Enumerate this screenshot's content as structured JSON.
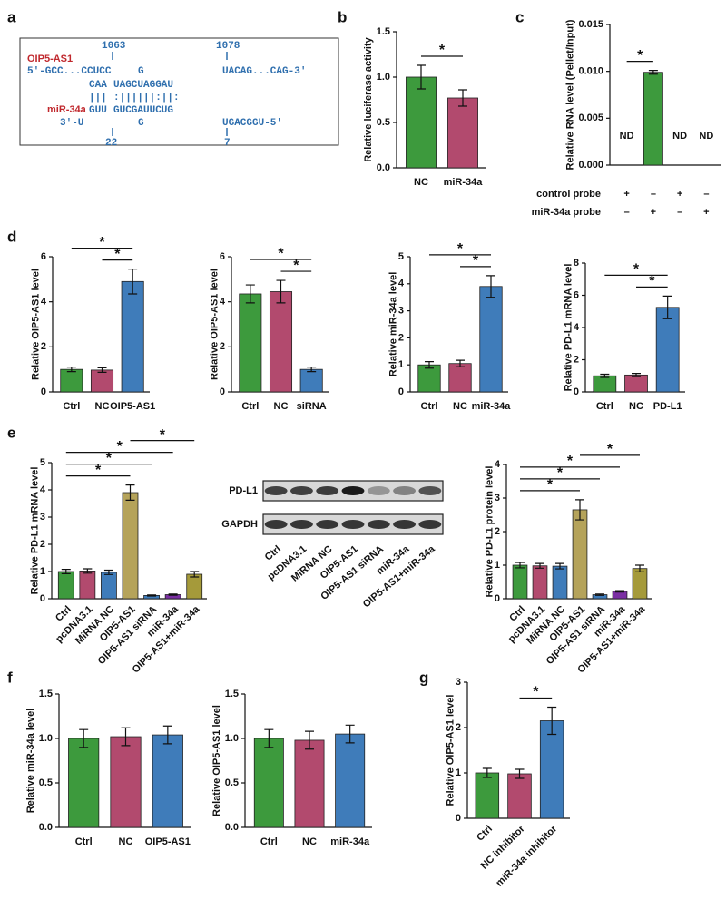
{
  "panel_labels": [
    "a",
    "b",
    "c",
    "d",
    "e",
    "f",
    "g"
  ],
  "panel_a": {
    "gene": "OIP5-AS1",
    "mirna": "miR-34a",
    "positions": [
      "1063",
      "1078",
      "22",
      "7"
    ],
    "segments": [
      "5'-GCC...CCUCC",
      "G",
      "UACAG...CAG-3'",
      "CAA",
      "UAGCUAGGAU",
      "|||",
      ":||||||:||:",
      "GUU",
      "GUCGAUUCUG",
      "3'-U",
      "G",
      "UGACGGU-5'"
    ]
  },
  "blot": {
    "rows": [
      "PD-L1",
      "GAPDH"
    ],
    "lanes": [
      "Ctrl",
      "pcDNA3.1",
      "MiRNA NC",
      "OIP5-AS1",
      "OIP5-AS1 siRNA",
      "miR-34a",
      "OIP5-AS1+miR-34a"
    ]
  },
  "chart_data": [
    {
      "type": "bar",
      "ylabel": "Relative luciferase activity",
      "categories": [
        "NC",
        "miR-34a"
      ],
      "values": [
        1.0,
        0.77
      ],
      "errors": [
        0.13,
        0.09
      ],
      "colors": [
        "#3d9a3d",
        "#b24a6e"
      ],
      "ylim": [
        0,
        1.5
      ],
      "yticks": [
        {
          "value": 0,
          "label": "0.0"
        },
        {
          "value": 0.5,
          "label": "0.5"
        },
        {
          "value": 1,
          "label": "1.0"
        },
        {
          "value": 1.5,
          "label": "1.5"
        }
      ],
      "significance": [
        {
          "from": 0,
          "to": 1,
          "label": "*"
        }
      ]
    },
    {
      "type": "bar",
      "ylabel": "Relative RNA level (Pellet/Input)",
      "categories": [
        null,
        null,
        null,
        null
      ],
      "values": [
        null,
        0.0099,
        null,
        null
      ],
      "value_labels": [
        "ND",
        null,
        "ND",
        "ND"
      ],
      "errors": [
        null,
        0.0002,
        null,
        null
      ],
      "colors": [
        "#3d9a3d",
        "#3d9a3d",
        "#3d9a3d",
        "#3d9a3d"
      ],
      "ylim": [
        0,
        0.015
      ],
      "yticks": [
        {
          "value": 0,
          "label": "0.000"
        },
        {
          "value": 0.005,
          "label": "0.005"
        },
        {
          "value": 0.01,
          "label": "0.010"
        },
        {
          "value": 0.015,
          "label": "0.015"
        }
      ],
      "significance": [
        {
          "from": 0,
          "to": 1,
          "label": "*"
        }
      ],
      "conditions": [
        {
          "name": "control probe",
          "values": [
            "+",
            "–",
            "+",
            "–"
          ]
        },
        {
          "name": "miR-34a probe",
          "values": [
            "–",
            "+",
            "–",
            "+"
          ]
        }
      ]
    },
    {
      "type": "bar",
      "ylabel": "Relative OIP5-AS1 level",
      "categories": [
        "Ctrl",
        "NC",
        "OIP5-AS1"
      ],
      "values": [
        1.0,
        0.97,
        4.9
      ],
      "errors": [
        0.1,
        0.1,
        0.55
      ],
      "colors": [
        "#3d9a3d",
        "#b24a6e",
        "#3f7cba"
      ],
      "ylim": [
        0,
        6
      ],
      "yticks": [
        0,
        2,
        4,
        6
      ],
      "significance": [
        {
          "from": 0,
          "to": 2,
          "label": "*"
        },
        {
          "from": 1,
          "to": 2,
          "label": "*"
        }
      ]
    },
    {
      "type": "bar",
      "ylabel": "Relative OIP5-AS1 level",
      "categories": [
        "Ctrl",
        "NC",
        "siRNA"
      ],
      "values": [
        4.35,
        4.45,
        1.0
      ],
      "errors": [
        0.4,
        0.5,
        0.1
      ],
      "colors": [
        "#3d9a3d",
        "#b24a6e",
        "#3f7cba"
      ],
      "ylim": [
        0,
        6
      ],
      "yticks": [
        0,
        2,
        4,
        6
      ],
      "significance": [
        {
          "from": 0,
          "to": 2,
          "label": "*"
        },
        {
          "from": 1,
          "to": 2,
          "label": "*"
        }
      ]
    },
    {
      "type": "bar",
      "ylabel": "Relative miR-34a level",
      "categories": [
        "Ctrl",
        "NC",
        "miR-34a"
      ],
      "values": [
        1.0,
        1.05,
        3.9
      ],
      "errors": [
        0.12,
        0.12,
        0.4
      ],
      "colors": [
        "#3d9a3d",
        "#b24a6e",
        "#3f7cba"
      ],
      "ylim": [
        0,
        5
      ],
      "yticks": [
        0,
        1,
        2,
        3,
        4,
        5
      ],
      "significance": [
        {
          "from": 0,
          "to": 2,
          "label": "*"
        },
        {
          "from": 1,
          "to": 2,
          "label": "*"
        }
      ]
    },
    {
      "type": "bar",
      "ylabel": "Relative PD-L1 mRNA level",
      "categories": [
        "Ctrl",
        "NC",
        "PD-L1"
      ],
      "values": [
        1.0,
        1.05,
        5.25
      ],
      "errors": [
        0.1,
        0.1,
        0.7
      ],
      "colors": [
        "#3d9a3d",
        "#b24a6e",
        "#3f7cba"
      ],
      "ylim": [
        0,
        8
      ],
      "yticks": [
        0,
        2,
        4,
        6,
        8
      ],
      "significance": [
        {
          "from": 0,
          "to": 2,
          "label": "*"
        },
        {
          "from": 1,
          "to": 2,
          "label": "*"
        }
      ]
    },
    {
      "type": "bar",
      "ylabel": "Relative PD-L1 mRNA level",
      "categories": [
        "Ctrl",
        "pcDNA3.1",
        "MiRNA NC",
        "OIP5-AS1",
        "OIP5-AS1 siRNA",
        "miR-34a",
        "OIP5-AS1+miR-34a"
      ],
      "values": [
        1.0,
        1.02,
        0.97,
        3.9,
        0.12,
        0.15,
        0.9
      ],
      "errors": [
        0.08,
        0.08,
        0.08,
        0.28,
        0.02,
        0.02,
        0.1
      ],
      "colors": [
        "#3d9a3d",
        "#b24a6e",
        "#3f7cba",
        "#b5a35a",
        "#3f7cba",
        "#7b2fa3",
        "#a59a3a"
      ],
      "ylim": [
        0,
        5
      ],
      "yticks": [
        0,
        1,
        2,
        3,
        4,
        5
      ],
      "significance": [
        {
          "from": 3,
          "to": 6,
          "label": "*"
        },
        {
          "from": 0,
          "to": 5,
          "label": "*"
        },
        {
          "from": 0,
          "to": 4,
          "label": "*"
        },
        {
          "from": 0,
          "to": 3,
          "label": "*"
        }
      ]
    },
    {
      "type": "bar",
      "ylabel": "Relative PD-L1 protein level",
      "categories": [
        "Ctrl",
        "pcDNA3.1",
        "MiRNA NC",
        "OIP5-AS1",
        "OIP5-AS1 siRNA",
        "miR-34a",
        "OIP5-AS1+miR-34a"
      ],
      "values": [
        1.0,
        0.98,
        0.97,
        2.65,
        0.12,
        0.22,
        0.9
      ],
      "errors": [
        0.08,
        0.07,
        0.08,
        0.3,
        0.02,
        0.02,
        0.1
      ],
      "colors": [
        "#3d9a3d",
        "#b24a6e",
        "#3f7cba",
        "#b5a35a",
        "#3f7cba",
        "#7b2fa3",
        "#a59a3a"
      ],
      "ylim": [
        0,
        4
      ],
      "yticks": [
        0,
        1,
        2,
        3,
        4
      ],
      "significance": [
        {
          "from": 3,
          "to": 6,
          "label": "*"
        },
        {
          "from": 0,
          "to": 5,
          "label": "*"
        },
        {
          "from": 0,
          "to": 4,
          "label": "*"
        },
        {
          "from": 0,
          "to": 3,
          "label": "*"
        }
      ]
    },
    {
      "type": "bar",
      "ylabel": "Relative miR-34a level",
      "categories": [
        "Ctrl",
        "NC",
        "OIP5-AS1"
      ],
      "values": [
        1.0,
        1.02,
        1.04
      ],
      "errors": [
        0.1,
        0.1,
        0.1
      ],
      "colors": [
        "#3d9a3d",
        "#b24a6e",
        "#3f7cba"
      ],
      "ylim": [
        0,
        1.5
      ],
      "yticks": [
        {
          "value": 0,
          "label": "0.0"
        },
        {
          "value": 0.5,
          "label": "0.5"
        },
        {
          "value": 1,
          "label": "1.0"
        },
        {
          "value": 1.5,
          "label": "1.5"
        }
      ],
      "significance": []
    },
    {
      "type": "bar",
      "ylabel": "Relative OIP5-AS1 level",
      "categories": [
        "Ctrl",
        "NC",
        "miR-34a"
      ],
      "values": [
        1.0,
        0.98,
        1.05
      ],
      "errors": [
        0.1,
        0.1,
        0.1
      ],
      "colors": [
        "#3d9a3d",
        "#b24a6e",
        "#3f7cba"
      ],
      "ylim": [
        0,
        1.5
      ],
      "yticks": [
        {
          "value": 0,
          "label": "0.0"
        },
        {
          "value": 0.5,
          "label": "0.5"
        },
        {
          "value": 1,
          "label": "1.0"
        },
        {
          "value": 1.5,
          "label": "1.5"
        }
      ],
      "significance": []
    },
    {
      "type": "bar",
      "ylabel": "Relative OIP5-AS1 level",
      "categories": [
        "Ctrl",
        "NC inhibitor",
        "miR-34a inhibitor"
      ],
      "values": [
        1.0,
        0.98,
        2.15
      ],
      "errors": [
        0.1,
        0.1,
        0.3
      ],
      "colors": [
        "#3d9a3d",
        "#b24a6e",
        "#3f7cba"
      ],
      "ylim": [
        0,
        3
      ],
      "yticks": [
        0,
        1,
        2,
        3
      ],
      "significance": [
        {
          "from": 1,
          "to": 2,
          "label": "*"
        }
      ]
    }
  ]
}
